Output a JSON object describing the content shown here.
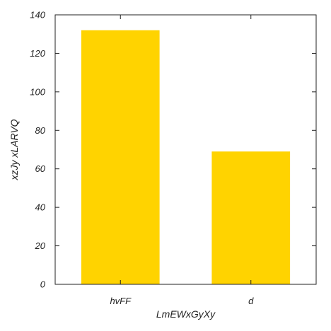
{
  "chart_data": {
    "type": "bar",
    "categories": [
      "hvFF",
      "d"
    ],
    "values": [
      132,
      69
    ],
    "xlabel": "LmEWxGyXy",
    "ylabel": "xzJy xLARVQ",
    "ylim": [
      0,
      140
    ],
    "yticks": [
      0,
      20,
      40,
      60,
      80,
      100,
      120,
      140
    ],
    "grid": false,
    "legend": "none",
    "colors": {
      "bar": "#FFD300",
      "axis": "#222222"
    }
  }
}
